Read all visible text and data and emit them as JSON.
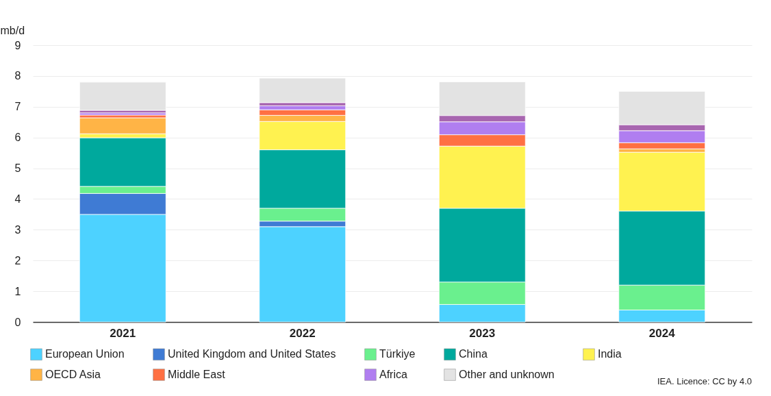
{
  "chart_data": {
    "type": "bar",
    "stacked": true,
    "ylabel": "mb/d",
    "categories": [
      "2021",
      "2022",
      "2023",
      "2024"
    ],
    "series": [
      {
        "name": "European Union",
        "color": "#4dd2ff",
        "values": [
          3.5,
          3.1,
          0.57,
          0.39
        ]
      },
      {
        "name": "United Kingdom and United States",
        "color": "#3f7bd4",
        "values": [
          0.68,
          0.18,
          0,
          0
        ]
      },
      {
        "name": "Türkiye",
        "color": "#6af08e",
        "values": [
          0.23,
          0.42,
          0.73,
          0.81
        ]
      },
      {
        "name": "China",
        "color": "#00a99d",
        "values": [
          1.58,
          1.9,
          2.4,
          2.41
        ]
      },
      {
        "name": "India",
        "color": "#fff250",
        "values": [
          0.13,
          0.92,
          2.02,
          1.91
        ]
      },
      {
        "name": "OECD Asia",
        "color": "#ffb446",
        "values": [
          0.52,
          0.2,
          0,
          0.11
        ]
      },
      {
        "name": "Middle East",
        "color": "#ff7043",
        "values": [
          0.09,
          0.18,
          0.37,
          0.2
        ]
      },
      {
        "name": "Africa",
        "color": "#b07ef0",
        "values": [
          0.07,
          0.13,
          0.42,
          0.39
        ]
      },
      {
        "color": "#a866b0",
        "values": [
          0.08,
          0.1,
          0.2,
          0.19
        ]
      },
      {
        "name": "Other and unknown",
        "color": "#e3e3e3",
        "values": [
          0.92,
          0.8,
          1.1,
          1.09
        ]
      }
    ],
    "ylim": [
      0,
      9
    ],
    "yticks": [
      0,
      1,
      2,
      3,
      4,
      5,
      6,
      7,
      8,
      9
    ],
    "grid": "y",
    "legend": "bottom",
    "annotations": [
      "IEA. Licence: CC by 4.0"
    ]
  }
}
